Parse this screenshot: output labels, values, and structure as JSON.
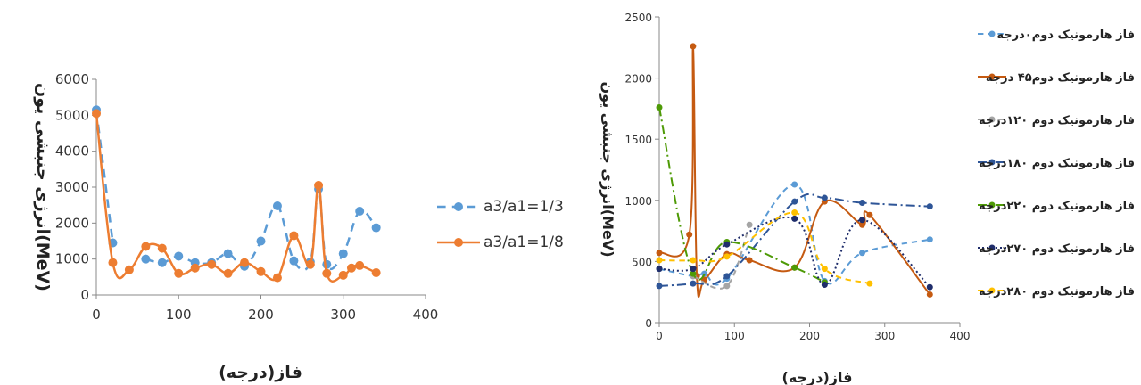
{
  "chart_data": [
    {
      "type": "line",
      "xlabel": "فاز(درجه)",
      "ylabel": "انرژی جنبشی یون(MeV)",
      "xlim": [
        0,
        400
      ],
      "ylim": [
        0,
        6000
      ],
      "xticks": [
        0,
        100,
        200,
        300,
        400
      ],
      "yticks": [
        0,
        1000,
        2000,
        3000,
        4000,
        5000,
        6000
      ],
      "legend_position": "right",
      "grid": false,
      "series": [
        {
          "name": "a3/a1=1/3",
          "color": "#5b9bd5",
          "style": "dashed",
          "points": [
            [
              0,
              5150
            ],
            [
              20,
              1450
            ],
            [
              40,
              null
            ],
            [
              60,
              1000
            ],
            [
              80,
              900
            ],
            [
              100,
              1080
            ],
            [
              120,
              900
            ],
            [
              140,
              900
            ],
            [
              160,
              1150
            ],
            [
              180,
              800
            ],
            [
              200,
              1500
            ],
            [
              220,
              2480
            ],
            [
              240,
              950
            ],
            [
              260,
              920
            ],
            [
              270,
              2950
            ],
            [
              280,
              850
            ],
            [
              300,
              1150
            ],
            [
              320,
              2330
            ],
            [
              340,
              1870
            ]
          ]
        },
        {
          "name": "a3/a1=1/8",
          "color": "#ed7d31",
          "style": "solid",
          "points": [
            [
              0,
              5050
            ],
            [
              20,
              900
            ],
            [
              40,
              700
            ],
            [
              60,
              1350
            ],
            [
              80,
              1300
            ],
            [
              100,
              600
            ],
            [
              120,
              750
            ],
            [
              140,
              850
            ],
            [
              160,
              600
            ],
            [
              180,
              900
            ],
            [
              200,
              650
            ],
            [
              220,
              480
            ],
            [
              240,
              1650
            ],
            [
              260,
              850
            ],
            [
              270,
              3050
            ],
            [
              280,
              600
            ],
            [
              300,
              550
            ],
            [
              310,
              750
            ],
            [
              320,
              820
            ],
            [
              340,
              620
            ]
          ]
        }
      ]
    },
    {
      "type": "scatter",
      "xlabel": "فاز(درجه)",
      "ylabel": "انرژی جنبشی یون(MeV)",
      "xlim": [
        0,
        400
      ],
      "ylim": [
        0,
        2500
      ],
      "xticks": [
        0,
        100,
        200,
        300,
        400
      ],
      "yticks": [
        0,
        500,
        1000,
        1500,
        2000,
        2500
      ],
      "legend_position": "right",
      "grid": false,
      "series": [
        {
          "name": "فاز هارمونیک دوم۰درجه",
          "color": "#5b9bd5",
          "style": "dashed",
          "points": [
            [
              0,
              440
            ],
            [
              45,
              380
            ],
            [
              60,
              400
            ],
            [
              90,
              360
            ],
            [
              180,
              1130
            ],
            [
              220,
              340
            ],
            [
              270,
              570
            ],
            [
              360,
              680
            ]
          ]
        },
        {
          "name": "فاز هارمونیک دوم۴۵ درجه",
          "color": "#c55a11",
          "style": "solid",
          "points": [
            [
              0,
              570
            ],
            [
              40,
              720
            ],
            [
              45,
              2260
            ],
            [
              50,
              380
            ],
            [
              60,
              350
            ],
            [
              90,
              560
            ],
            [
              120,
              510
            ],
            [
              180,
              450
            ],
            [
              220,
              990
            ],
            [
              270,
              800
            ],
            [
              280,
              880
            ],
            [
              360,
              230
            ]
          ]
        },
        {
          "name": "فاز هارمونیک دوم ۱۲۰درجه",
          "color": "#a5a5a5",
          "style": "dashed",
          "points": [
            [
              45,
              380
            ],
            [
              90,
              300
            ],
            [
              120,
              800
            ]
          ]
        },
        {
          "name": "فاز هارمونیک دوم ۱۸۰درجه",
          "color": "#2e5597",
          "style": "dashdot",
          "points": [
            [
              0,
              300
            ],
            [
              45,
              320
            ],
            [
              90,
              380
            ],
            [
              180,
              990
            ],
            [
              220,
              1020
            ],
            [
              270,
              980
            ],
            [
              360,
              950
            ]
          ]
        },
        {
          "name": "فاز هارمونیک دوم ۲۲۰درجه",
          "color": "#4e9a06",
          "style": "dashdot",
          "points": [
            [
              0,
              1760
            ],
            [
              45,
              400
            ],
            [
              90,
              660
            ],
            [
              180,
              450
            ],
            [
              220,
              330
            ]
          ]
        },
        {
          "name": "فاز هارمونیک دوم ۲۷۰درجه",
          "color": "#1f2d6b",
          "style": "dotted",
          "points": [
            [
              0,
              440
            ],
            [
              45,
              440
            ],
            [
              90,
              640
            ],
            [
              180,
              850
            ],
            [
              220,
              310
            ],
            [
              270,
              840
            ],
            [
              360,
              290
            ]
          ]
        },
        {
          "name": "فاز هارمونیک دوم ۲۸۰درجه",
          "color": "#ffc000",
          "style": "dashed",
          "points": [
            [
              0,
              510
            ],
            [
              45,
              510
            ],
            [
              90,
              540
            ],
            [
              180,
              900
            ],
            [
              220,
              440
            ],
            [
              280,
              320
            ]
          ]
        }
      ]
    }
  ]
}
